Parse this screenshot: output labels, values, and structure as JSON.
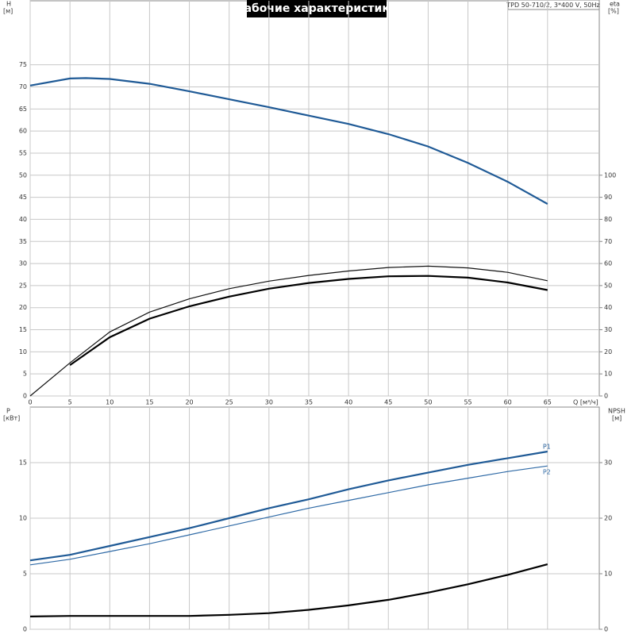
{
  "chart_data": [
    {
      "type": "line",
      "title": "Рабочие характеристики",
      "subtitle": "TPD 50-710/2, 3*400 V, 50Hz",
      "ylabel": "H",
      "yunit": "[м]",
      "y2label": "eta",
      "y2unit": "[%]",
      "xlabel": "Q [м³/ч]",
      "xlim": [
        0,
        71.5
      ],
      "xticks": [
        0,
        5,
        10,
        15,
        20,
        25,
        30,
        35,
        40,
        45,
        50,
        55,
        60,
        65
      ],
      "ylim": [
        0,
        89.5
      ],
      "yticks": [
        0,
        5,
        10,
        15,
        20,
        25,
        30,
        35,
        40,
        45,
        50,
        55,
        60,
        65,
        70,
        75
      ],
      "y2lim": [
        0,
        179
      ],
      "y2ticks": [
        0,
        10,
        20,
        30,
        40,
        50,
        60,
        70,
        80,
        90,
        100
      ],
      "grid": true,
      "series": [
        {
          "color": "#1f5a96",
          "width": 2.2,
          "x": [
            0,
            5,
            7,
            10,
            15,
            20,
            25,
            30,
            35,
            40,
            45,
            50,
            55,
            60,
            65
          ],
          "values": [
            70.3,
            71.9,
            72,
            71.8,
            70.7,
            69,
            67.2,
            65.4,
            63.5,
            61.6,
            59.3,
            56.5,
            52.8,
            48.5,
            43.5
          ]
        },
        {
          "color": "#111111",
          "width": 1.2,
          "axis": "y2",
          "x": [
            0,
            5,
            10,
            15,
            20,
            25,
            30,
            35,
            40,
            45,
            50,
            55,
            60,
            65
          ],
          "values": [
            0,
            15,
            29,
            38,
            44,
            48.6,
            52,
            54.6,
            56.6,
            58.2,
            58.8,
            58,
            56,
            52.2
          ]
        },
        {
          "color": "#000000",
          "width": 2.2,
          "axis": "y2",
          "x": [
            5,
            10,
            15,
            20,
            25,
            30,
            35,
            40,
            45,
            50,
            55,
            60,
            65
          ],
          "values": [
            14,
            26.6,
            35,
            40.6,
            45,
            48.6,
            51.2,
            53,
            54.2,
            54.4,
            53.6,
            51.4,
            48
          ]
        }
      ]
    },
    {
      "type": "line",
      "ylabel": "P",
      "yunit": "[кВт]",
      "y2label": "NPSH",
      "y2unit": "[м]",
      "xlim": [
        0,
        71.5
      ],
      "ylim": [
        0,
        20
      ],
      "yticks": [
        0,
        5,
        10,
        15
      ],
      "y2lim": [
        0,
        40
      ],
      "y2ticks": [
        0,
        10,
        20,
        30
      ],
      "grid": true,
      "series": [
        {
          "name": "P1",
          "color": "#1f5a96",
          "width": 2.2,
          "x": [
            0,
            5,
            10,
            15,
            20,
            25,
            30,
            35,
            40,
            45,
            50,
            55,
            60,
            65
          ],
          "values": [
            6.2,
            6.7,
            7.5,
            8.3,
            9.1,
            10,
            10.9,
            11.7,
            12.6,
            13.4,
            14.1,
            14.8,
            15.4,
            16
          ]
        },
        {
          "name": "P2",
          "color": "#2f6aa6",
          "width": 1.2,
          "x": [
            0,
            5,
            10,
            15,
            20,
            25,
            30,
            35,
            40,
            45,
            50,
            55,
            60,
            65
          ],
          "values": [
            5.8,
            6.3,
            7,
            7.7,
            8.5,
            9.3,
            10.1,
            10.9,
            11.6,
            12.3,
            13,
            13.6,
            14.2,
            14.7
          ]
        },
        {
          "color": "#000000",
          "width": 2.2,
          "axis": "y2",
          "x": [
            0,
            5,
            10,
            15,
            20,
            25,
            30,
            35,
            40,
            45,
            50,
            55,
            60,
            65
          ],
          "values": [
            2.3,
            2.4,
            2.4,
            2.4,
            2.4,
            2.6,
            2.9,
            3.5,
            4.3,
            5.3,
            6.6,
            8.1,
            9.8,
            11.7
          ]
        }
      ]
    }
  ]
}
